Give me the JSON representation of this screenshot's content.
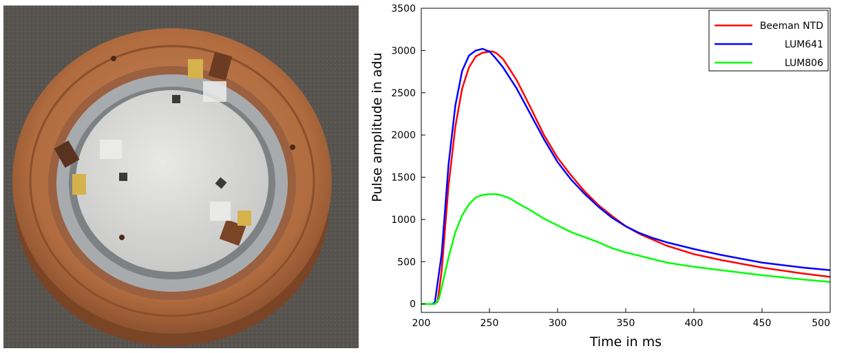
{
  "photo": {
    "subject": "copper detector holder with light detector disk and sensors",
    "colors": {
      "background": "#56534f",
      "copper": "#b77548",
      "disk": "#d9d9d6",
      "ring": "#a9acae"
    }
  },
  "chart_data": {
    "type": "line",
    "title": "",
    "xlabel": "Time in ms",
    "ylabel": "Pulse amplitude in adu",
    "xlim": [
      200,
      500
    ],
    "ylim": [
      -100,
      3500
    ],
    "xticks": [
      200,
      250,
      300,
      350,
      400,
      450,
      500
    ],
    "yticks": [
      0,
      500,
      1000,
      1500,
      2000,
      2500,
      3000,
      3500
    ],
    "grid": false,
    "legend_position": "top-right",
    "series": [
      {
        "name": "Beeman NTD",
        "color": "#ff0000",
        "x": [
          200,
          205,
          210,
          212,
          215,
          220,
          225,
          230,
          235,
          240,
          245,
          250,
          252,
          255,
          260,
          270,
          280,
          290,
          300,
          310,
          320,
          330,
          340,
          350,
          360,
          370,
          380,
          400,
          420,
          450,
          480,
          500
        ],
        "y": [
          0,
          0,
          0,
          30,
          400,
          1400,
          2100,
          2550,
          2800,
          2930,
          2975,
          2985,
          2990,
          2970,
          2900,
          2650,
          2330,
          2000,
          1730,
          1520,
          1330,
          1170,
          1040,
          920,
          830,
          760,
          690,
          590,
          520,
          430,
          360,
          320
        ]
      },
      {
        "name": "LUM641",
        "color": "#0000ff",
        "x": [
          200,
          205,
          208,
          210,
          215,
          220,
          225,
          230,
          235,
          240,
          245,
          248,
          250,
          255,
          260,
          270,
          280,
          290,
          300,
          310,
          320,
          330,
          340,
          350,
          360,
          370,
          380,
          400,
          420,
          450,
          480,
          500
        ],
        "y": [
          0,
          0,
          0,
          20,
          600,
          1650,
          2350,
          2760,
          2940,
          3000,
          3020,
          3000,
          2990,
          2900,
          2800,
          2550,
          2250,
          1950,
          1680,
          1470,
          1300,
          1150,
          1020,
          920,
          840,
          780,
          730,
          650,
          580,
          490,
          430,
          400
        ]
      },
      {
        "name": "LUM806",
        "color": "#00ff00",
        "x": [
          200,
          205,
          210,
          213,
          215,
          220,
          225,
          230,
          235,
          240,
          245,
          250,
          255,
          260,
          265,
          270,
          280,
          290,
          300,
          310,
          320,
          330,
          340,
          350,
          360,
          370,
          380,
          400,
          420,
          450,
          480,
          500
        ],
        "y": [
          0,
          0,
          0,
          60,
          200,
          550,
          850,
          1050,
          1180,
          1260,
          1290,
          1300,
          1300,
          1280,
          1250,
          1200,
          1110,
          1010,
          930,
          850,
          790,
          730,
          660,
          610,
          570,
          530,
          490,
          440,
          400,
          340,
          290,
          260
        ]
      }
    ]
  }
}
